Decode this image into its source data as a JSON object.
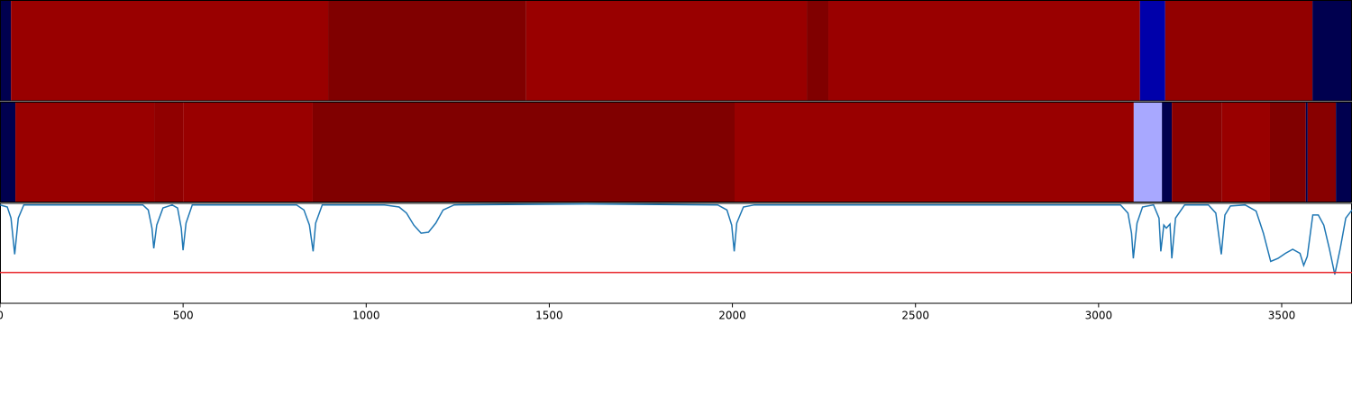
{
  "chart_data": [
    {
      "type": "heatmap",
      "xlim": [
        0,
        3692
      ],
      "segments": [
        {
          "start": 0,
          "end": 30,
          "color": "#00004f"
        },
        {
          "start": 30,
          "end": 896,
          "color": "#990000"
        },
        {
          "start": 896,
          "end": 1437,
          "color": "#800000"
        },
        {
          "start": 1437,
          "end": 2203,
          "color": "#990000"
        },
        {
          "start": 2203,
          "end": 2262,
          "color": "#800000"
        },
        {
          "start": 2262,
          "end": 3113,
          "color": "#990000"
        },
        {
          "start": 3113,
          "end": 3182,
          "color": "#0000aa"
        },
        {
          "start": 3182,
          "end": 3584,
          "color": "#920000"
        },
        {
          "start": 3584,
          "end": 3692,
          "color": "#00004f"
        }
      ]
    },
    {
      "type": "heatmap",
      "xlim": [
        0,
        3692
      ],
      "segments": [
        {
          "start": 0,
          "end": 42,
          "color": "#00004f"
        },
        {
          "start": 42,
          "end": 421,
          "color": "#990000"
        },
        {
          "start": 421,
          "end": 500,
          "color": "#900000"
        },
        {
          "start": 500,
          "end": 854,
          "color": "#990000"
        },
        {
          "start": 854,
          "end": 2006,
          "color": "#800000"
        },
        {
          "start": 2006,
          "end": 3096,
          "color": "#990000"
        },
        {
          "start": 3096,
          "end": 3173,
          "color": "#a8a8ff"
        },
        {
          "start": 3173,
          "end": 3200,
          "color": "#00004f"
        },
        {
          "start": 3200,
          "end": 3337,
          "color": "#8a0000"
        },
        {
          "start": 3337,
          "end": 3468,
          "color": "#990000"
        },
        {
          "start": 3468,
          "end": 3566,
          "color": "#800000"
        },
        {
          "start": 3566,
          "end": 3571,
          "color": "#00004f"
        },
        {
          "start": 3571,
          "end": 3648,
          "color": "#880000"
        },
        {
          "start": 3648,
          "end": 3692,
          "color": "#00004f"
        }
      ]
    },
    {
      "type": "line",
      "xlim": [
        0,
        3692
      ],
      "ylim": [
        0,
        1
      ],
      "color": "#1f77b4",
      "xticks": [
        0,
        500,
        1000,
        1500,
        2000,
        2500,
        3000,
        3500
      ],
      "threshold": 0.31,
      "threshold_color": "#e8262a",
      "x": [
        0,
        20,
        30,
        40,
        50,
        65,
        390,
        405,
        415,
        420,
        428,
        445,
        470,
        485,
        495,
        500,
        508,
        525,
        810,
        830,
        845,
        855,
        862,
        880,
        1050,
        1090,
        1110,
        1130,
        1150,
        1170,
        1190,
        1210,
        1240,
        1600,
        1960,
        1985,
        1998,
        2005,
        2012,
        2030,
        2060,
        3060,
        3080,
        3090,
        3095,
        3105,
        3120,
        3150,
        3165,
        3170,
        3178,
        3185,
        3195,
        3200,
        3210,
        3235,
        3300,
        3320,
        3335,
        3345,
        3360,
        3400,
        3430,
        3450,
        3470,
        3490,
        3510,
        3530,
        3550,
        3560,
        3570,
        3585,
        3600,
        3615,
        3630,
        3645,
        3660,
        3675,
        3692
      ],
      "values": [
        0.98,
        0.96,
        0.85,
        0.49,
        0.85,
        0.98,
        0.98,
        0.93,
        0.75,
        0.55,
        0.78,
        0.95,
        0.98,
        0.95,
        0.75,
        0.53,
        0.8,
        0.98,
        0.98,
        0.93,
        0.78,
        0.52,
        0.8,
        0.98,
        0.98,
        0.96,
        0.9,
        0.78,
        0.7,
        0.71,
        0.8,
        0.93,
        0.98,
        0.99,
        0.98,
        0.93,
        0.78,
        0.52,
        0.8,
        0.96,
        0.98,
        0.98,
        0.9,
        0.7,
        0.45,
        0.8,
        0.96,
        0.98,
        0.85,
        0.52,
        0.78,
        0.75,
        0.79,
        0.45,
        0.85,
        0.98,
        0.98,
        0.9,
        0.49,
        0.88,
        0.97,
        0.98,
        0.92,
        0.7,
        0.42,
        0.45,
        0.5,
        0.54,
        0.5,
        0.38,
        0.47,
        0.88,
        0.88,
        0.78,
        0.55,
        0.29,
        0.55,
        0.85,
        0.93
      ]
    }
  ]
}
